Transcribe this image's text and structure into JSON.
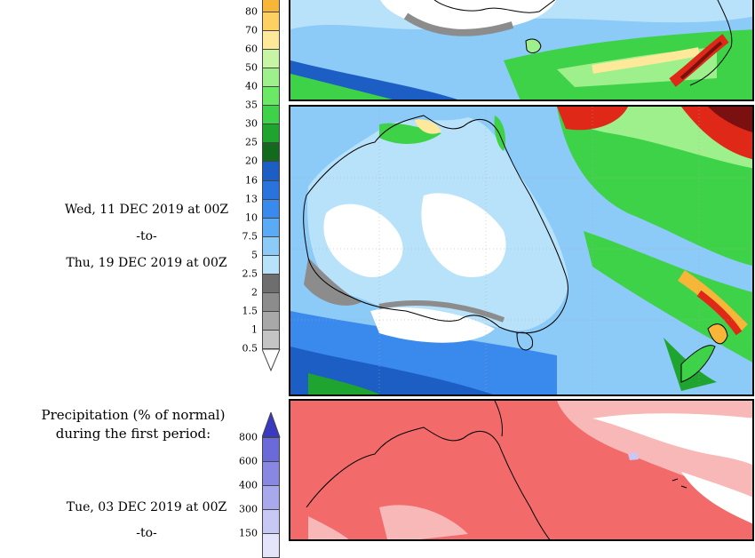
{
  "first_period": {
    "start": "Wed, 11 DEC 2019 at 00Z",
    "to": "-to-",
    "end": "Thu, 19 DEC 2019 at 00Z"
  },
  "colorbar1": {
    "ticks": [
      "80",
      "70",
      "60",
      "50",
      "40",
      "35",
      "30",
      "25",
      "20",
      "16",
      "13",
      "10",
      "7.5",
      "5",
      "2.5",
      "2",
      "1.5",
      "1",
      "0.5"
    ],
    "colors": [
      "#f8b638",
      "#fcd062",
      "#fee89a",
      "#c8f4a6",
      "#9ef08c",
      "#6be866",
      "#3ed249",
      "#1fa52f",
      "#136a1e",
      "#1d5ec4",
      "#2a73dc",
      "#3a8aee",
      "#5aaaf6",
      "#8ccaf8",
      "#b7e2fa",
      "#6e6e6e",
      "#8c8c8c",
      "#a8a8a8",
      "#c4c4c4"
    ]
  },
  "second": {
    "title_line1": "Precipitation (% of normal)",
    "title_line2": "during the first period:",
    "start": "Tue, 03 DEC 2019 at 00Z",
    "to": "-to-"
  },
  "colorbar2": {
    "ticks": [
      "800",
      "600",
      "400",
      "300",
      "150"
    ],
    "colors": [
      "#6a6ad8",
      "#8888e2",
      "#a8a8ec",
      "#c8c8f4",
      "#e4e4fa"
    ],
    "arrow_color": "#3a3ac0"
  }
}
